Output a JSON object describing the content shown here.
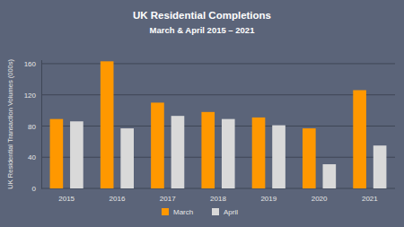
{
  "chart_data": {
    "type": "bar",
    "title": "UK Residential Completions",
    "subtitle": "March & April 2015 – 2021",
    "y_label": "UK Residential Transaction Volumes (000s)",
    "categories": [
      "2015",
      "2016",
      "2017",
      "2018",
      "2019",
      "2020",
      "2021"
    ],
    "series": [
      {
        "name": "March",
        "color": "#ff9800",
        "values": [
          89,
          163,
          110,
          98,
          91,
          77,
          126
        ]
      },
      {
        "name": "April",
        "color": "#d9d9d9",
        "values": [
          86,
          77,
          93,
          89,
          81,
          31,
          55
        ]
      }
    ],
    "ylim": [
      0,
      165
    ],
    "yticks": [
      0,
      40,
      80,
      120,
      160
    ],
    "grid": true,
    "legend": "bottom"
  }
}
